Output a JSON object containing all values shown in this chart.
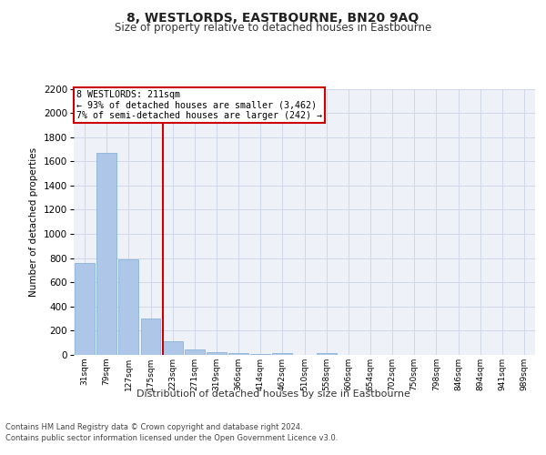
{
  "title": "8, WESTLORDS, EASTBOURNE, BN20 9AQ",
  "subtitle": "Size of property relative to detached houses in Eastbourne",
  "xlabel": "Distribution of detached houses by size in Eastbourne",
  "ylabel": "Number of detached properties",
  "categories": [
    "31sqm",
    "79sqm",
    "127sqm",
    "175sqm",
    "223sqm",
    "271sqm",
    "319sqm",
    "366sqm",
    "414sqm",
    "462sqm",
    "510sqm",
    "558sqm",
    "606sqm",
    "654sqm",
    "702sqm",
    "750sqm",
    "798sqm",
    "846sqm",
    "894sqm",
    "941sqm",
    "989sqm"
  ],
  "values": [
    760,
    1670,
    790,
    300,
    110,
    45,
    25,
    18,
    10,
    18,
    0,
    18,
    0,
    0,
    0,
    0,
    0,
    0,
    0,
    0,
    0
  ],
  "bar_color": "#aec6e8",
  "bar_edge_color": "#7badd4",
  "vline_color": "#cc0000",
  "annotation_box_text": "8 WESTLORDS: 211sqm\n← 93% of detached houses are smaller (3,462)\n7% of semi-detached houses are larger (242) →",
  "annotation_box_color": "#cc0000",
  "annotation_box_bg": "#ffffff",
  "ylim": [
    0,
    2200
  ],
  "yticks": [
    0,
    200,
    400,
    600,
    800,
    1000,
    1200,
    1400,
    1600,
    1800,
    2000,
    2200
  ],
  "grid_color": "#d0d8e8",
  "footer_line1": "Contains HM Land Registry data © Crown copyright and database right 2024.",
  "footer_line2": "Contains public sector information licensed under the Open Government Licence v3.0.",
  "bg_color": "#ffffff",
  "plot_bg_color": "#eef2f8"
}
